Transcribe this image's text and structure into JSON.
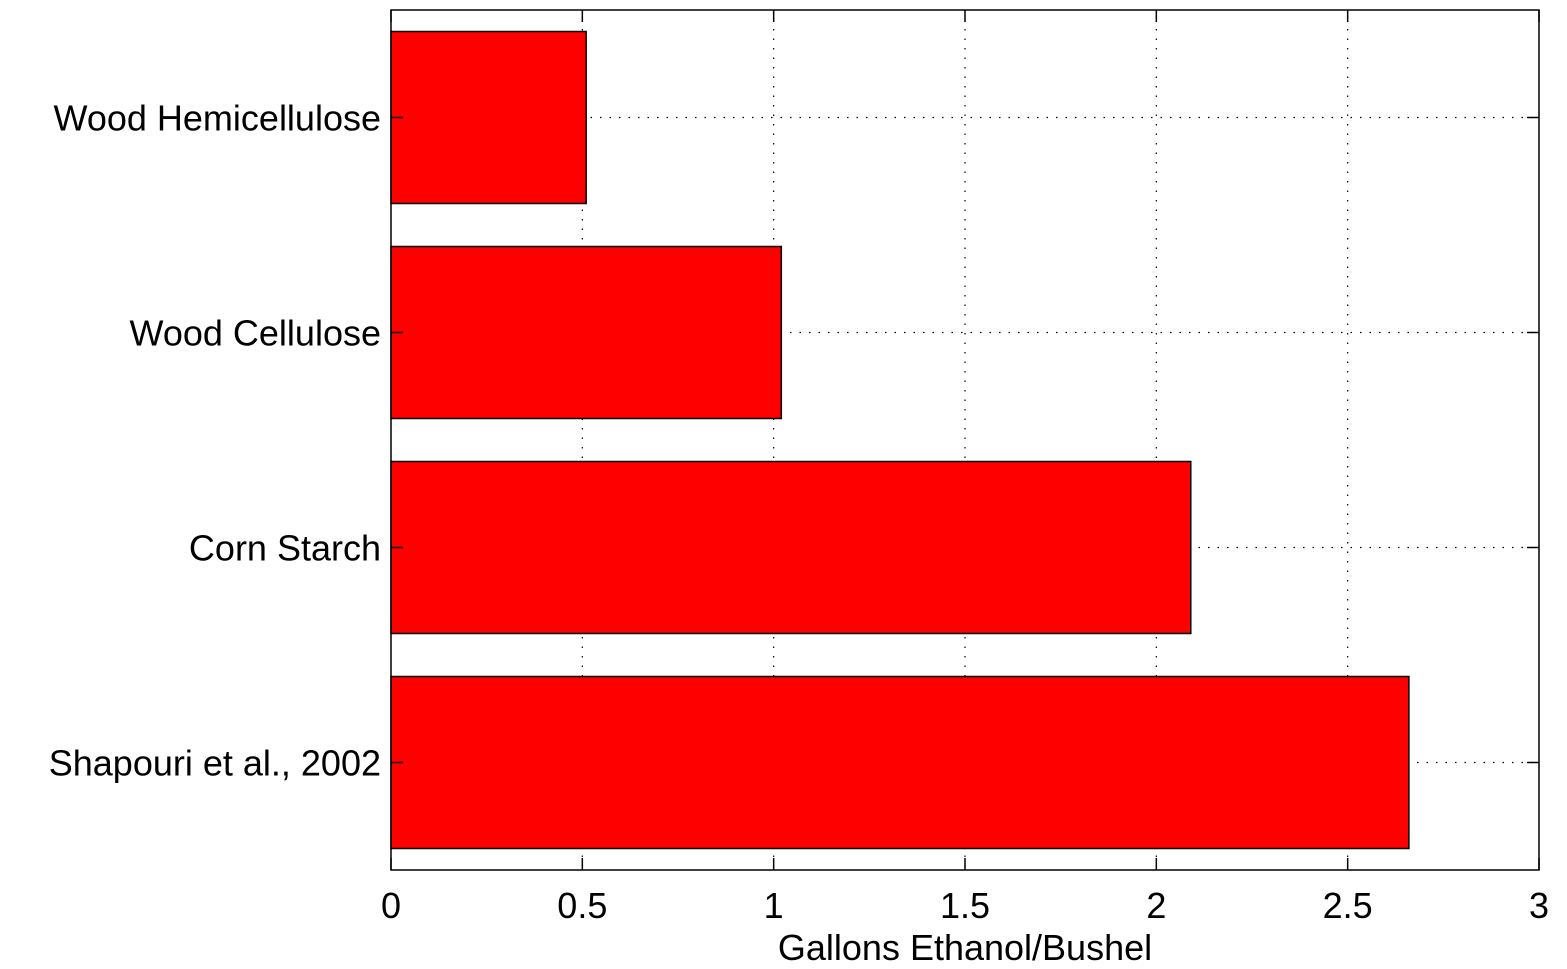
{
  "chart_data": {
    "type": "bar",
    "orientation": "horizontal",
    "categories": [
      "Wood Hemicellulose",
      "Wood Cellulose",
      "Corn Starch",
      "Shapouri et al., 2002"
    ],
    "values": [
      0.51,
      1.02,
      2.09,
      2.66
    ],
    "xlabel": "Gallons Ethanol/Bushel",
    "ylabel": "",
    "xlim": [
      0,
      3
    ],
    "xticks": [
      0,
      0.5,
      1,
      1.5,
      2,
      2.5,
      3
    ],
    "xtick_labels": [
      "0",
      "0.5",
      "1",
      "1.5",
      "2",
      "2.5",
      "3"
    ],
    "grid": true,
    "grid_style": "dotted",
    "bar_color": "#ff0000",
    "bar_edge_color": "#000000"
  }
}
